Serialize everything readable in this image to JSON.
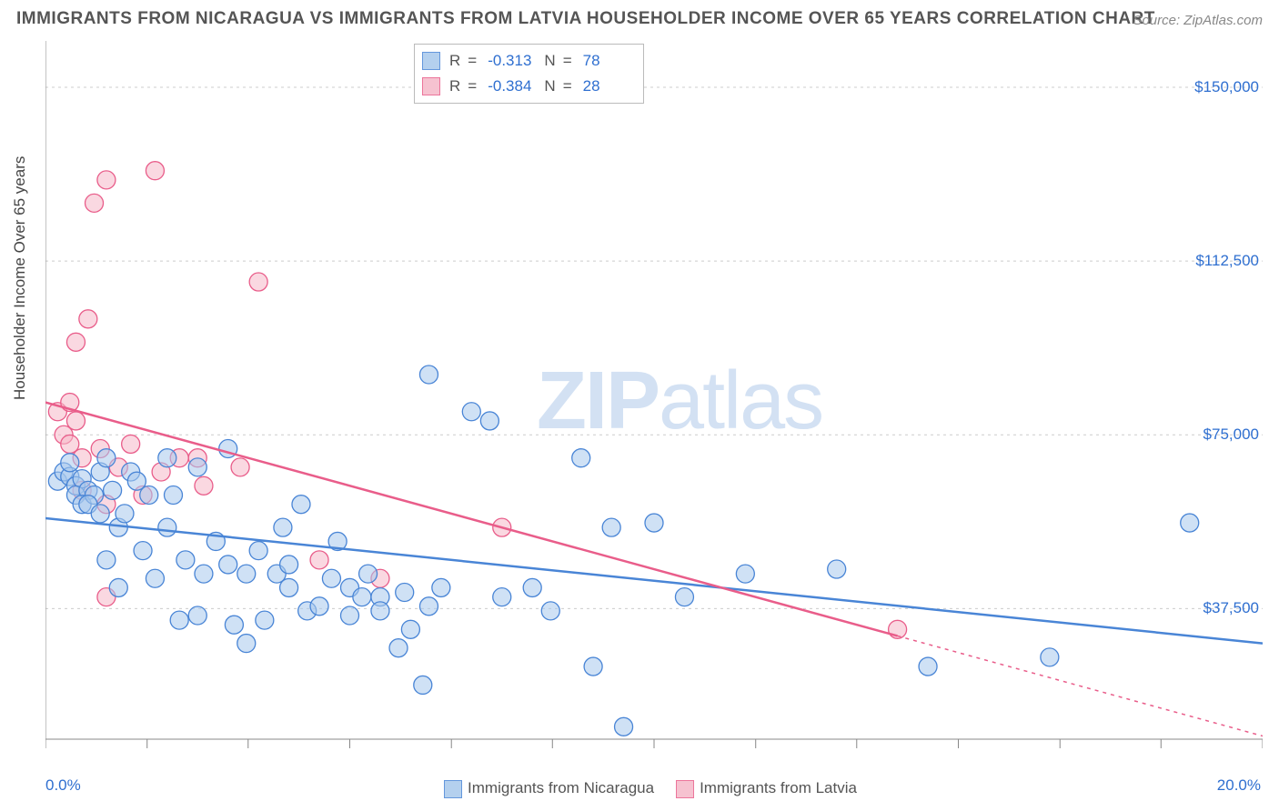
{
  "title": "IMMIGRANTS FROM NICARAGUA VS IMMIGRANTS FROM LATVIA HOUSEHOLDER INCOME OVER 65 YEARS CORRELATION CHART",
  "source": "Source: ZipAtlas.com",
  "ylabel": "Householder Income Over 65 years",
  "watermark_bold": "ZIP",
  "watermark_light": "atlas",
  "series": [
    {
      "key": "nicaragua",
      "label": "Immigrants from Nicaragua",
      "fill": "#a8c8ec",
      "stroke": "#4985d6",
      "fill_opacity": 0.55,
      "r_value": "-0.313",
      "n_value": "78",
      "trend": {
        "x1": 0.0,
        "y1": 57000,
        "x2": 20.0,
        "y2": 30000,
        "solid_until_x": 20.0
      },
      "points": [
        [
          0.2,
          65000
        ],
        [
          0.3,
          67000
        ],
        [
          0.4,
          66000
        ],
        [
          0.5,
          64000
        ],
        [
          0.6,
          65500
        ],
        [
          0.5,
          62000
        ],
        [
          0.7,
          63000
        ],
        [
          0.6,
          60000
        ],
        [
          0.8,
          62000
        ],
        [
          0.9,
          67000
        ],
        [
          1.0,
          70000
        ],
        [
          1.1,
          63000
        ],
        [
          1.2,
          55000
        ],
        [
          1.3,
          58000
        ],
        [
          1.4,
          67000
        ],
        [
          1.0,
          48000
        ],
        [
          1.5,
          65000
        ],
        [
          1.2,
          42000
        ],
        [
          1.8,
          44000
        ],
        [
          1.7,
          62000
        ],
        [
          2.0,
          70000
        ],
        [
          2.2,
          35000
        ],
        [
          2.0,
          55000
        ],
        [
          2.3,
          48000
        ],
        [
          2.5,
          68000
        ],
        [
          2.5,
          36000
        ],
        [
          2.8,
          52000
        ],
        [
          2.6,
          45000
        ],
        [
          3.0,
          72000
        ],
        [
          3.0,
          47000
        ],
        [
          3.1,
          34000
        ],
        [
          3.3,
          45000
        ],
        [
          3.3,
          30000
        ],
        [
          3.5,
          50000
        ],
        [
          3.6,
          35000
        ],
        [
          3.9,
          55000
        ],
        [
          3.8,
          45000
        ],
        [
          4.0,
          47000
        ],
        [
          4.2,
          60000
        ],
        [
          4.0,
          42000
        ],
        [
          4.3,
          37000
        ],
        [
          4.5,
          38000
        ],
        [
          4.7,
          44000
        ],
        [
          5.0,
          42000
        ],
        [
          5.2,
          40000
        ],
        [
          5.0,
          36000
        ],
        [
          5.3,
          45000
        ],
        [
          5.5,
          40000
        ],
        [
          5.5,
          37000
        ],
        [
          5.8,
          29000
        ],
        [
          5.9,
          41000
        ],
        [
          6.0,
          33000
        ],
        [
          6.2,
          21000
        ],
        [
          6.3,
          88000
        ],
        [
          6.3,
          38000
        ],
        [
          6.5,
          42000
        ],
        [
          7.0,
          80000
        ],
        [
          7.3,
          78000
        ],
        [
          7.5,
          40000
        ],
        [
          8.0,
          42000
        ],
        [
          8.3,
          37000
        ],
        [
          8.8,
          70000
        ],
        [
          9.0,
          25000
        ],
        [
          9.3,
          55000
        ],
        [
          9.5,
          12000
        ],
        [
          10.0,
          56000
        ],
        [
          10.5,
          40000
        ],
        [
          11.5,
          45000
        ],
        [
          13.0,
          46000
        ],
        [
          14.5,
          25000
        ],
        [
          16.5,
          27000
        ],
        [
          18.8,
          56000
        ],
        [
          0.4,
          69000
        ],
        [
          0.7,
          60000
        ],
        [
          0.9,
          58000
        ],
        [
          1.6,
          50000
        ],
        [
          2.1,
          62000
        ],
        [
          4.8,
          52000
        ]
      ]
    },
    {
      "key": "latvia",
      "label": "Immigrants from Latvia",
      "fill": "#f5b8c8",
      "stroke": "#e95d8a",
      "fill_opacity": 0.55,
      "r_value": "-0.384",
      "n_value": "28",
      "trend": {
        "x1": 0.0,
        "y1": 82000,
        "x2": 20.0,
        "y2": 10000,
        "solid_until_x": 14.0
      },
      "points": [
        [
          0.2,
          80000
        ],
        [
          0.3,
          75000
        ],
        [
          0.4,
          82000
        ],
        [
          0.4,
          73000
        ],
        [
          0.5,
          95000
        ],
        [
          0.5,
          78000
        ],
        [
          0.6,
          70000
        ],
        [
          0.7,
          100000
        ],
        [
          0.6,
          63000
        ],
        [
          0.8,
          125000
        ],
        [
          0.9,
          72000
        ],
        [
          1.0,
          130000
        ],
        [
          1.0,
          60000
        ],
        [
          1.2,
          68000
        ],
        [
          1.4,
          73000
        ],
        [
          1.6,
          62000
        ],
        [
          1.0,
          40000
        ],
        [
          1.8,
          132000
        ],
        [
          1.9,
          67000
        ],
        [
          2.2,
          70000
        ],
        [
          2.5,
          70000
        ],
        [
          2.6,
          64000
        ],
        [
          3.2,
          68000
        ],
        [
          3.5,
          108000
        ],
        [
          4.5,
          48000
        ],
        [
          5.5,
          44000
        ],
        [
          7.5,
          55000
        ],
        [
          14.0,
          33000
        ]
      ]
    }
  ],
  "legend_top": {
    "r_label": "R",
    "n_label": "N"
  },
  "chart": {
    "type": "scatter",
    "xlim": [
      0,
      20
    ],
    "ylim": [
      5000,
      160000
    ],
    "x_ticks": [
      0,
      1.67,
      3.33,
      5.0,
      6.67,
      8.33,
      10.0,
      11.67,
      13.33,
      15.0,
      16.67,
      18.33,
      20.0
    ],
    "x_tick_labels": {
      "left": "0.0%",
      "right": "20.0%"
    },
    "y_grid": [
      37500,
      75000,
      112500,
      150000
    ],
    "y_tick_labels": [
      "$37,500",
      "$75,000",
      "$112,500",
      "$150,000"
    ],
    "grid_color": "#cccccc",
    "axis_color": "#888888",
    "background": "#ffffff",
    "marker_radius": 10,
    "trend_line_width": 2.5,
    "title_fontsize": 19,
    "label_fontsize": 17,
    "tick_fontsize": 17,
    "value_color": "#2f6fd0"
  }
}
